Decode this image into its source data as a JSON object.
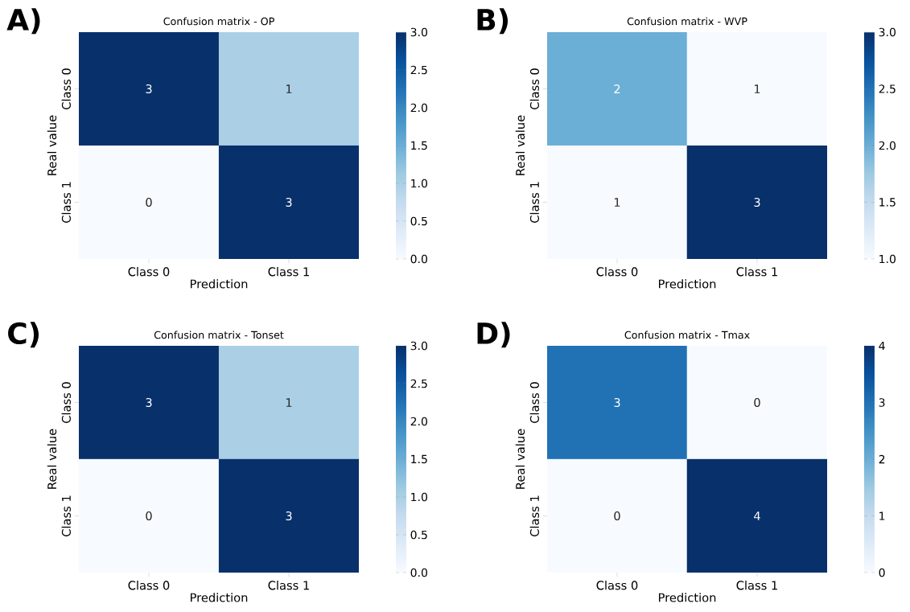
{
  "chart_data": [
    {
      "type": "heatmap",
      "title": "Confusion matrix - OP",
      "xlabel": "Prediction",
      "ylabel": "Real value",
      "annotations": [
        "A)"
      ],
      "categories": [
        "Class 0",
        "Class 1"
      ],
      "y_categories": [
        "Class 0",
        "Class 1"
      ],
      "cells": [
        [
          3,
          1
        ],
        [
          0,
          3
        ]
      ],
      "data_labels": true,
      "clim": [
        0,
        3
      ],
      "cticks": [
        {
          "value": 0,
          "label": "0.0"
        },
        {
          "value": 0.5,
          "label": "0.5"
        },
        {
          "value": 1,
          "label": "1.0"
        },
        {
          "value": 1.5,
          "label": "1.5"
        },
        {
          "value": 2,
          "label": "2.0"
        },
        {
          "value": 2.5,
          "label": "2.5"
        },
        {
          "value": 3,
          "label": "3.0"
        }
      ]
    },
    {
      "type": "heatmap",
      "title": "Confusion matrix - WVP",
      "xlabel": "Prediction",
      "ylabel": "Real value",
      "annotations": [
        "B)"
      ],
      "categories": [
        "Class 0",
        "Class 1"
      ],
      "y_categories": [
        "Class 0",
        "Class 1"
      ],
      "cells": [
        [
          2,
          1
        ],
        [
          1,
          3
        ]
      ],
      "data_labels": true,
      "clim": [
        1,
        3
      ],
      "cticks": [
        {
          "value": 1,
          "label": "1.0"
        },
        {
          "value": 1.5,
          "label": "1.5"
        },
        {
          "value": 2,
          "label": "2.0"
        },
        {
          "value": 2.5,
          "label": "2.5"
        },
        {
          "value": 3,
          "label": "3.0"
        }
      ]
    },
    {
      "type": "heatmap",
      "title": "Confusion matrix - Tonset",
      "xlabel": "Prediction",
      "ylabel": "Real value",
      "annotations": [
        "C)"
      ],
      "categories": [
        "Class 0",
        "Class 1"
      ],
      "y_categories": [
        "Class 0",
        "Class 1"
      ],
      "cells": [
        [
          3,
          1
        ],
        [
          0,
          3
        ]
      ],
      "data_labels": true,
      "clim": [
        0,
        3
      ],
      "cticks": [
        {
          "value": 0,
          "label": "0.0"
        },
        {
          "value": 0.5,
          "label": "0.5"
        },
        {
          "value": 1,
          "label": "1.0"
        },
        {
          "value": 1.5,
          "label": "1.5"
        },
        {
          "value": 2,
          "label": "2.0"
        },
        {
          "value": 2.5,
          "label": "2.5"
        },
        {
          "value": 3,
          "label": "3.0"
        }
      ]
    },
    {
      "type": "heatmap",
      "title": "Confusion matrix - Tmax",
      "xlabel": "Prediction",
      "ylabel": "Real value",
      "annotations": [
        "D)"
      ],
      "categories": [
        "Class 0",
        "Class 1"
      ],
      "y_categories": [
        "Class 0",
        "Class 1"
      ],
      "cells": [
        [
          3,
          0
        ],
        [
          0,
          4
        ]
      ],
      "data_labels": true,
      "clim": [
        0,
        4
      ],
      "cticks": [
        0,
        1,
        2,
        3,
        4
      ]
    }
  ]
}
